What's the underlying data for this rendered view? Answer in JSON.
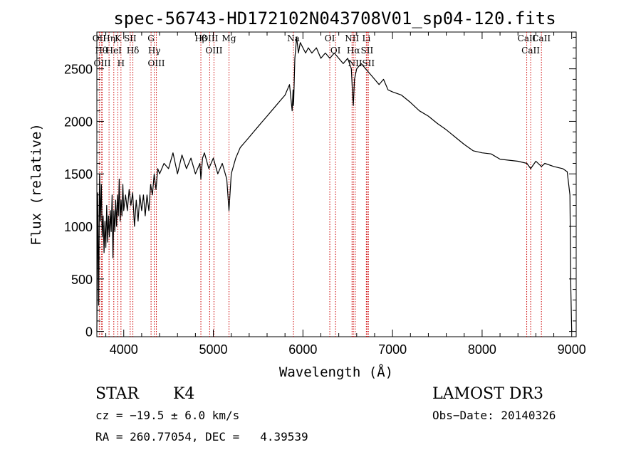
{
  "chart_data": {
    "type": "line",
    "title": "spec-56743-HD172102N043708V01_sp04-120.fits",
    "xlabel": "Wavelength (Å)",
    "ylabel": "Flux (relative)",
    "xlim": [
      3700,
      9050
    ],
    "ylim": [
      -50,
      2850
    ],
    "xticks": [
      4000,
      5000,
      6000,
      7000,
      8000,
      9000
    ],
    "xtick_labels": [
      "4000",
      "5000",
      "6000",
      "7000",
      "8000",
      "9000"
    ],
    "yticks": [
      0,
      500,
      1000,
      1500,
      2000,
      2500
    ],
    "ytick_labels": [
      "0",
      "500",
      "1000",
      "1500",
      "2000",
      "2500"
    ],
    "series": [
      {
        "name": "spectrum",
        "x": [
          3700,
          3710,
          3720,
          3730,
          3740,
          3750,
          3760,
          3770,
          3780,
          3790,
          3800,
          3810,
          3820,
          3830,
          3840,
          3850,
          3860,
          3870,
          3880,
          3890,
          3900,
          3910,
          3920,
          3930,
          3940,
          3950,
          3960,
          3970,
          3980,
          3990,
          4000,
          4020,
          4040,
          4060,
          4080,
          4100,
          4120,
          4140,
          4160,
          4180,
          4200,
          4220,
          4240,
          4260,
          4280,
          4300,
          4320,
          4340,
          4360,
          4380,
          4400,
          4450,
          4500,
          4550,
          4600,
          4650,
          4700,
          4750,
          4800,
          4850,
          4861,
          4880,
          4900,
          4950,
          5000,
          5050,
          5100,
          5150,
          5175,
          5200,
          5250,
          5300,
          5350,
          5400,
          5450,
          5500,
          5550,
          5600,
          5650,
          5700,
          5750,
          5800,
          5850,
          5880,
          5890,
          5896,
          5910,
          5930,
          5950,
          5970,
          6000,
          6030,
          6060,
          6100,
          6150,
          6200,
          6250,
          6300,
          6350,
          6400,
          6450,
          6500,
          6540,
          6555,
          6563,
          6575,
          6600,
          6650,
          6700,
          6750,
          6800,
          6850,
          6900,
          6950,
          7000,
          7100,
          7200,
          7300,
          7400,
          7500,
          7600,
          7700,
          7800,
          7900,
          8000,
          8100,
          8200,
          8300,
          8400,
          8500,
          8542,
          8600,
          8662,
          8700,
          8800,
          8900,
          8950,
          8980,
          8990,
          9000
        ],
        "y": [
          0,
          1320,
          250,
          1500,
          1050,
          1400,
          900,
          1100,
          750,
          1050,
          800,
          1200,
          850,
          1100,
          900,
          1150,
          950,
          1300,
          700,
          1150,
          950,
          1250,
          1000,
          1300,
          1100,
          1450,
          1050,
          1250,
          1100,
          1400,
          1150,
          1300,
          1150,
          1350,
          1200,
          1320,
          1000,
          1250,
          1050,
          1300,
          1150,
          1300,
          1100,
          1300,
          1150,
          1400,
          1300,
          1500,
          1350,
          1550,
          1500,
          1600,
          1550,
          1700,
          1500,
          1680,
          1550,
          1650,
          1500,
          1600,
          1450,
          1650,
          1700,
          1550,
          1650,
          1500,
          1600,
          1450,
          1150,
          1500,
          1650,
          1750,
          1800,
          1850,
          1900,
          1950,
          2000,
          2050,
          2100,
          2150,
          2200,
          2250,
          2350,
          2100,
          2300,
          2150,
          2600,
          2800,
          2650,
          2750,
          2700,
          2650,
          2700,
          2650,
          2700,
          2600,
          2650,
          2600,
          2650,
          2600,
          2550,
          2600,
          2500,
          2250,
          2150,
          2400,
          2500,
          2550,
          2500,
          2450,
          2400,
          2350,
          2400,
          2300,
          2280,
          2250,
          2180,
          2100,
          2050,
          1980,
          1920,
          1850,
          1780,
          1720,
          1700,
          1690,
          1640,
          1630,
          1620,
          1600,
          1550,
          1620,
          1570,
          1600,
          1570,
          1550,
          1520,
          1300,
          400,
          0
        ]
      }
    ],
    "line_markers": [
      {
        "name": "OII",
        "x": 3727
      },
      {
        "name": "Hθ",
        "x": 3750
      },
      {
        "name": "OIII",
        "x": 3760
      },
      {
        "name": "Hη",
        "x": 3836
      },
      {
        "name": "HeI",
        "x": 3889
      },
      {
        "name": "K",
        "x": 3934
      },
      {
        "name": "H",
        "x": 3969
      },
      {
        "name": "SII",
        "x": 4072
      },
      {
        "name": "Hδ",
        "x": 4102
      },
      {
        "name": "G",
        "x": 4305
      },
      {
        "name": "Hγ",
        "x": 4341
      },
      {
        "name": "OIII",
        "x": 4364
      },
      {
        "name": "Hβ",
        "x": 4861
      },
      {
        "name": "OIII",
        "x": 4959
      },
      {
        "name": "OIII",
        "x": 5007
      },
      {
        "name": "Mg",
        "x": 5175
      },
      {
        "name": "Na",
        "x": 5894
      },
      {
        "name": "OI",
        "x": 6300
      },
      {
        "name": "OI",
        "x": 6364
      },
      {
        "name": "NII",
        "x": 6548
      },
      {
        "name": "Hα",
        "x": 6563
      },
      {
        "name": "NII",
        "x": 6583
      },
      {
        "name": "Li",
        "x": 6708
      },
      {
        "name": "SII",
        "x": 6716
      },
      {
        "name": "SII",
        "x": 6731
      },
      {
        "name": "CaII",
        "x": 8498
      },
      {
        "name": "CaII",
        "x": 8542
      },
      {
        "name": "CaII",
        "x": 8662
      }
    ]
  },
  "info": {
    "class": "STAR",
    "subclass": "K4",
    "survey": "LAMOST DR3",
    "redshift": "cz = −19.5 ± 6.0 km/s",
    "obs_date": "Obs−Date: 20140326",
    "coords": "RA = 260.77054, DEC =   4.39539"
  },
  "colors": {
    "axis": "#000000",
    "spectrum": "#000000",
    "marker": "#cc0000",
    "background": "#ffffff"
  }
}
